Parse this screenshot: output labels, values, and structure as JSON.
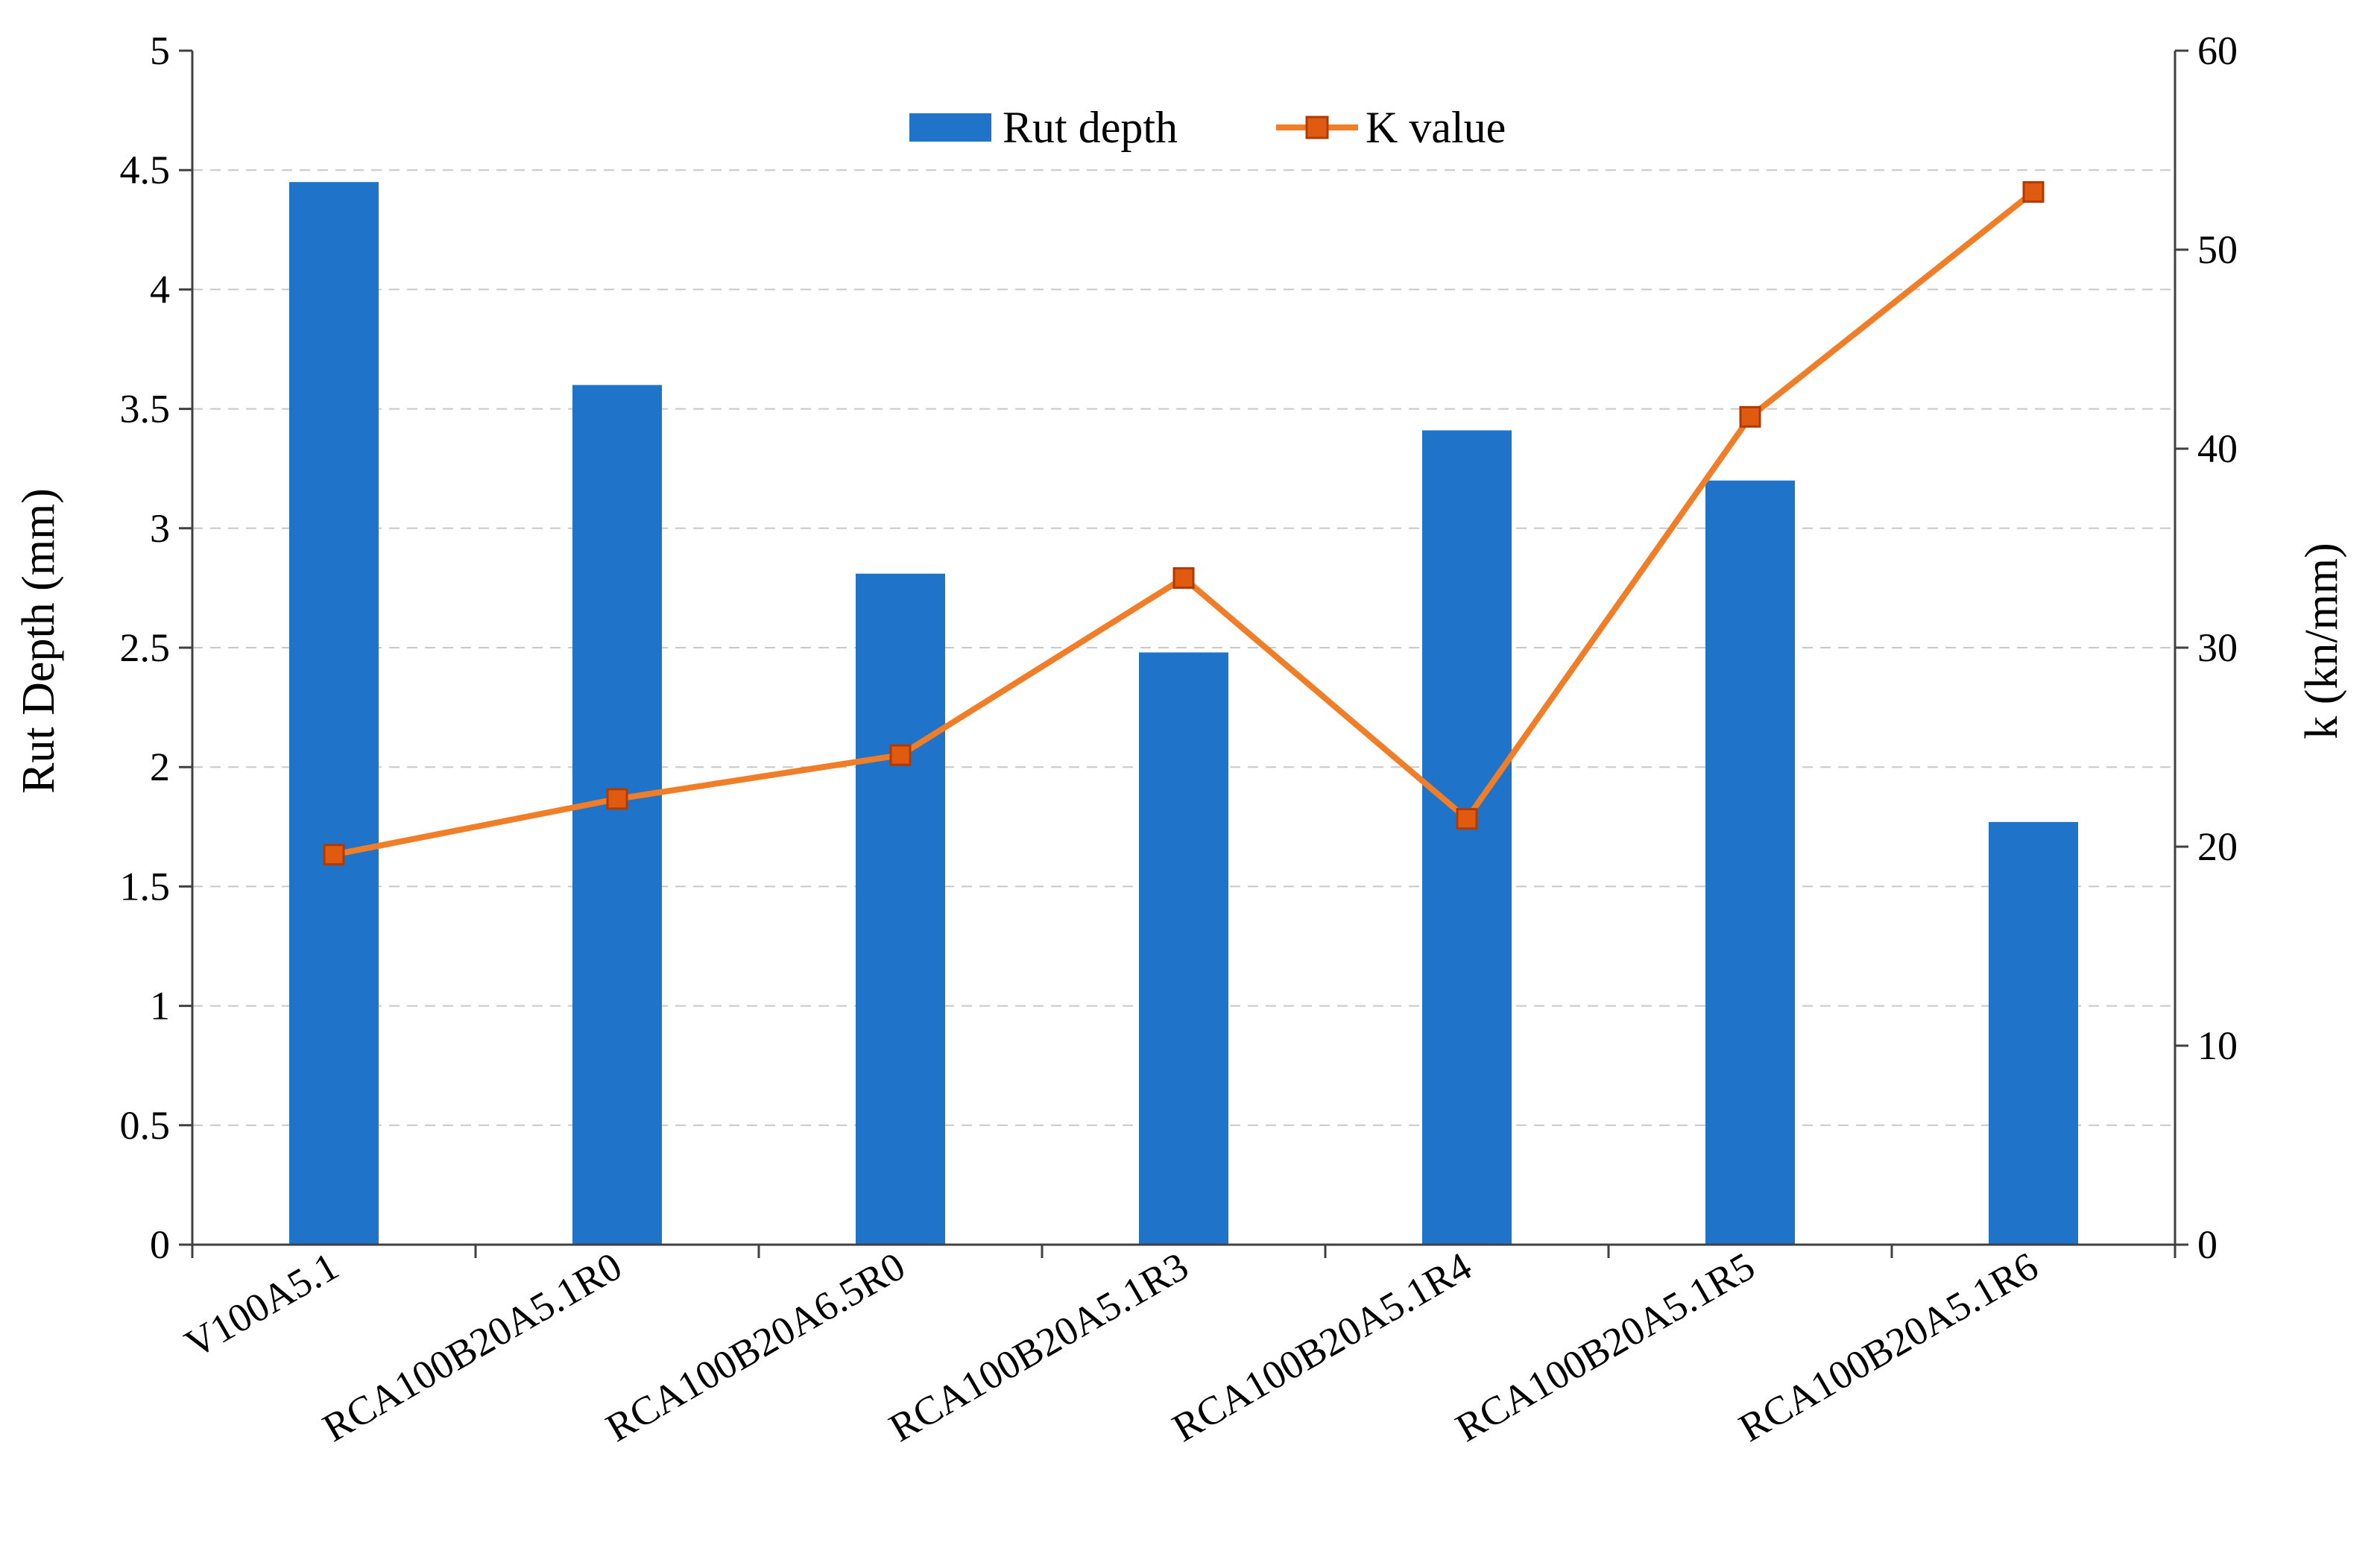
{
  "chart_data": {
    "type": "bar",
    "categories": [
      "V100A5.1",
      "RCA100B20A5.1R0",
      "RCA100B20A6.5R0",
      "RCA100B20A5.1R3",
      "RCA100B20A5.1R4",
      "RCA100B20A5.1R5",
      "RCA100B20A5.1R6"
    ],
    "series": [
      {
        "name": "Rut depth",
        "type": "bar",
        "axis": "left",
        "color": "#1F74C9",
        "values": [
          4.45,
          3.6,
          2.81,
          2.48,
          3.41,
          3.2,
          1.77
        ]
      },
      {
        "name": "K value",
        "type": "line",
        "axis": "right",
        "color": "#F07D28",
        "marker_fill": "#E05A10",
        "marker_stroke": "#B03A00",
        "values": [
          19.6,
          22.4,
          24.6,
          33.5,
          21.4,
          41.6,
          52.9
        ]
      }
    ],
    "ylabel": "Rut Depth (mm)",
    "y2label": "k (kn/mm)",
    "xlabel": "",
    "ylim": [
      0,
      5
    ],
    "y2lim": [
      0,
      60
    ],
    "yticks": [
      "0",
      "0.5",
      "1",
      "1.5",
      "2",
      "2.5",
      "3",
      "3.5",
      "4",
      "4.5",
      "5"
    ],
    "y2ticks": [
      "0",
      "10",
      "20",
      "30",
      "40",
      "50",
      "60"
    ],
    "grid": "horizontal dashed",
    "legend_position": "top-center"
  }
}
